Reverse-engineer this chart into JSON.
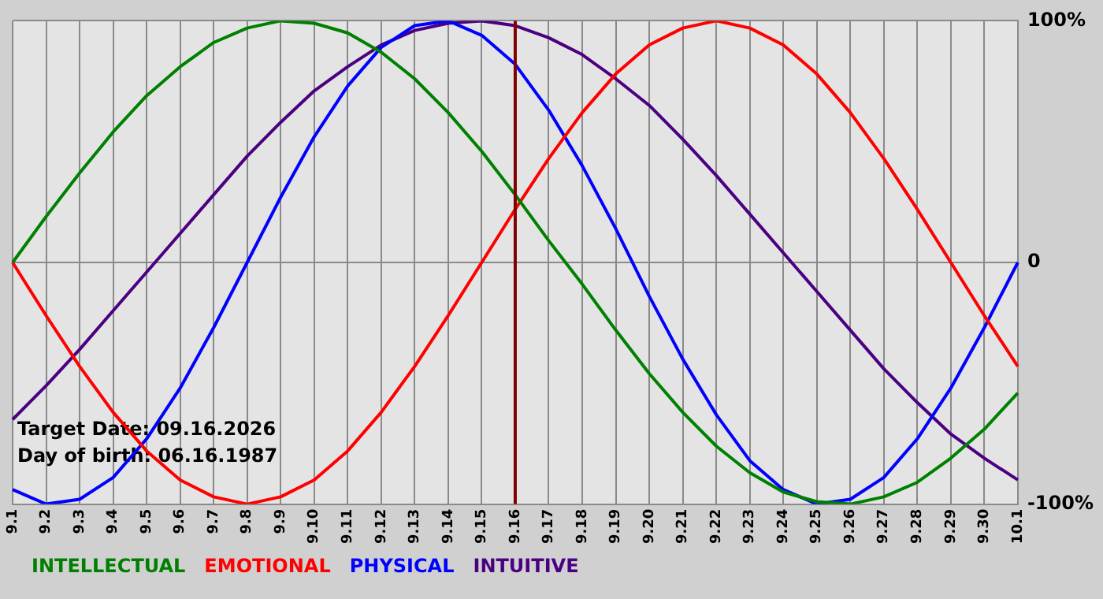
{
  "chart_data": {
    "type": "line",
    "categories": [
      "9.1",
      "9.2",
      "9.3",
      "9.4",
      "9.5",
      "9.6",
      "9.7",
      "9.8",
      "9.9",
      "9.10",
      "9.11",
      "9.12",
      "9.13",
      "9.14",
      "9.15",
      "9.16",
      "9.17",
      "9.18",
      "9.19",
      "9.20",
      "9.21",
      "9.22",
      "9.23",
      "9.24",
      "9.25",
      "9.26",
      "9.27",
      "9.28",
      "9.29",
      "9.30",
      "10.1"
    ],
    "series": [
      {
        "name": "INTELLECTUAL",
        "color": "#008000",
        "values": [
          0,
          19,
          37,
          54,
          69,
          81,
          91,
          97,
          100,
          99,
          95,
          87,
          76,
          62,
          46,
          28,
          9,
          -9,
          -28,
          -46,
          -62,
          -76,
          -87,
          -95,
          -99,
          -100,
          -97,
          -91,
          -81,
          -69,
          -54
        ]
      },
      {
        "name": "EMOTIONAL",
        "color": "#ff0000",
        "values": [
          0,
          -22,
          -43,
          -62,
          -78,
          -90,
          -97,
          -100,
          -97,
          -90,
          -78,
          -62,
          -43,
          -22,
          0,
          22,
          43,
          62,
          78,
          90,
          97,
          100,
          97,
          90,
          78,
          62,
          43,
          22,
          0,
          -22,
          -43
        ]
      },
      {
        "name": "PHYSICAL",
        "color": "#0000ff",
        "values": [
          -94,
          -100,
          -98,
          -89,
          -73,
          -52,
          -27,
          0,
          27,
          52,
          73,
          89,
          98,
          100,
          94,
          82,
          63,
          40,
          14,
          -14,
          -40,
          -63,
          -82,
          -94,
          -100,
          -98,
          -89,
          -73,
          -52,
          -27,
          0
        ]
      },
      {
        "name": "INTUITIVE",
        "color": "#4b0082",
        "values": [
          -65,
          -51,
          -36,
          -20,
          -4,
          12,
          28,
          44,
          58,
          71,
          81,
          90,
          96,
          99,
          100,
          98,
          93,
          86,
          76,
          65,
          51,
          36,
          20,
          4,
          -12,
          -28,
          -44,
          -58,
          -71,
          -81,
          -90
        ]
      }
    ],
    "ylim": [
      -100,
      100
    ],
    "yticks": [
      {
        "value": -100,
        "label": "-100%"
      },
      0,
      {
        "value": 100,
        "label": "100%"
      }
    ],
    "grid": true,
    "legend": "bottom",
    "marker": "none",
    "line_style": "solid",
    "ref_lines": [
      {
        "axis": "x",
        "value": "9.16",
        "color": "#800000"
      }
    ],
    "annotations": [
      "Target Date: 09.16.2026",
      "Day of birth: 06.16.1987"
    ]
  }
}
